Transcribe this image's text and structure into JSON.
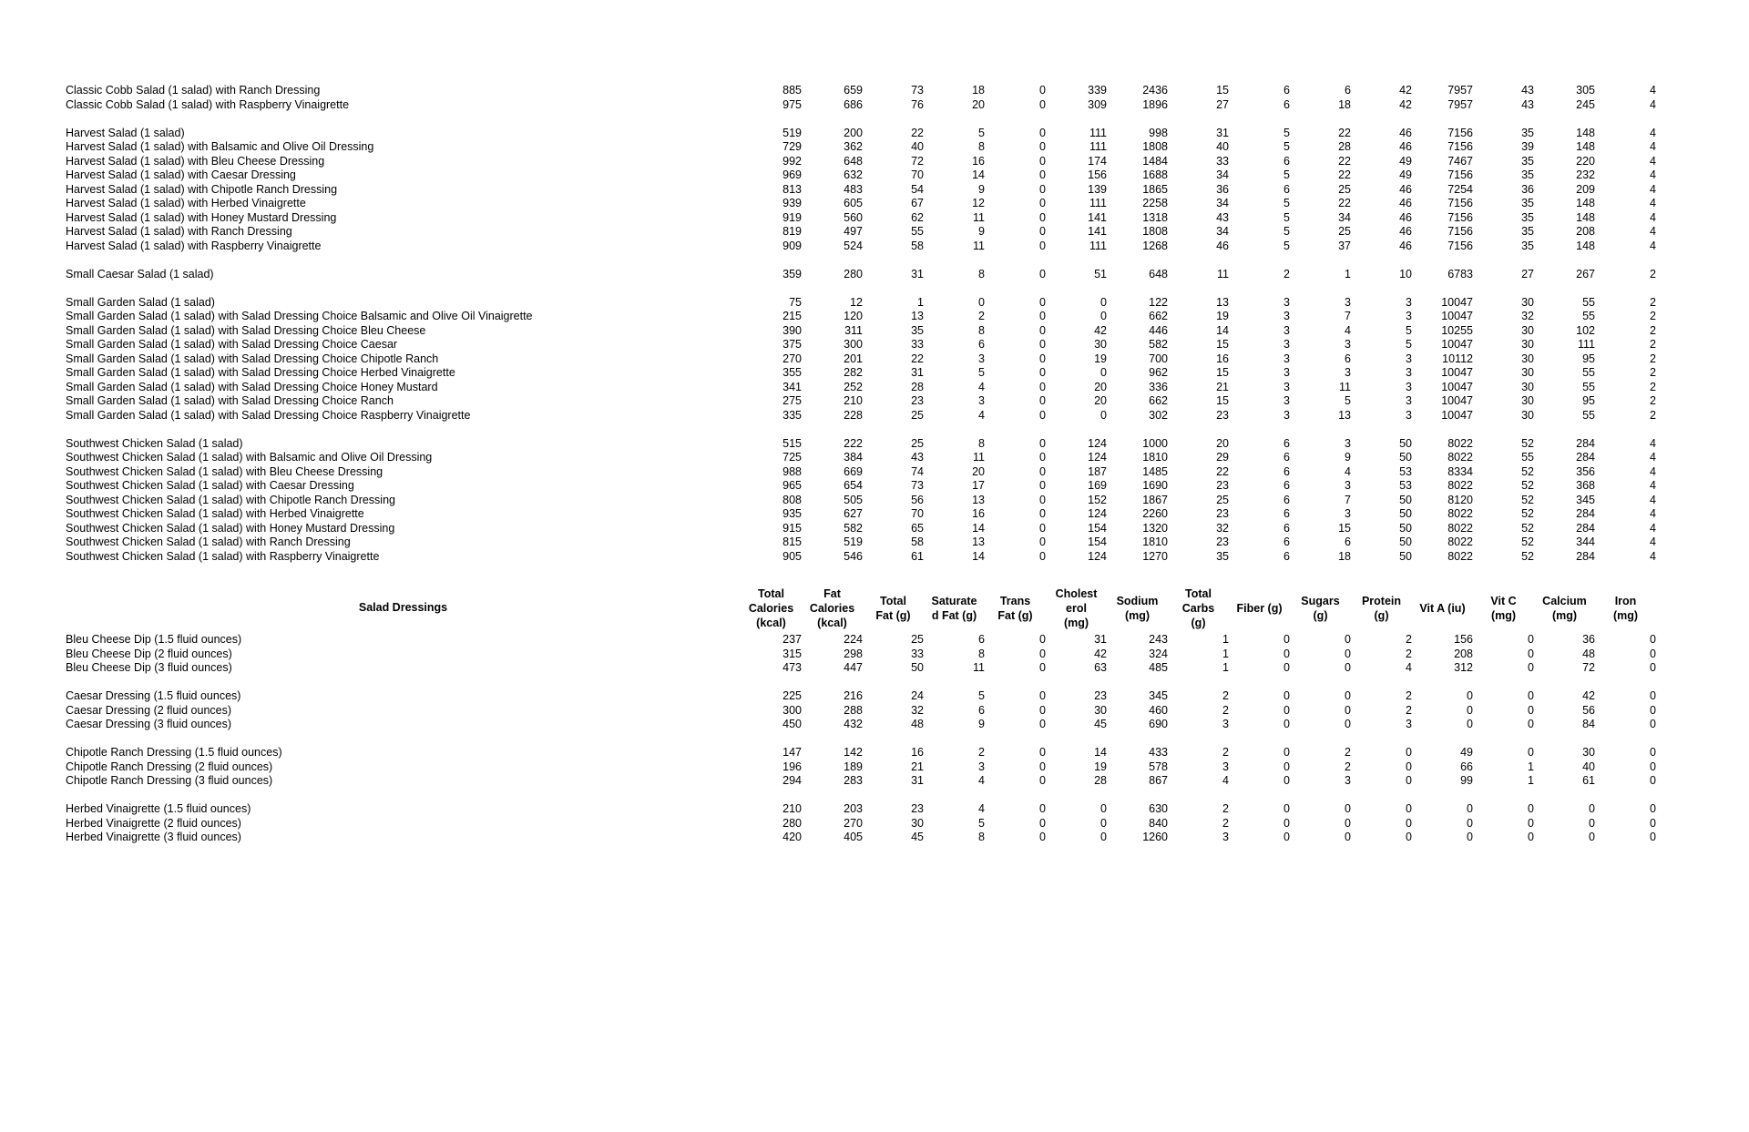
{
  "page": {
    "background_color": "#ffffff",
    "text_color": "#000000"
  },
  "table": {
    "column_keys": [
      "total-calories-kcal",
      "fat-calories-kcal",
      "total-fat-g",
      "saturated-fat-g",
      "trans-fat-g",
      "cholesterol-mg",
      "sodium-mg",
      "total-carbs-g",
      "fiber-g",
      "sugars-g",
      "protein-g",
      "vit-a-iu",
      "vit-c-mg",
      "calcium-mg",
      "iron-mg"
    ],
    "columns": [
      "Total\nCalories\n(kcal)",
      "Fat\nCalories\n(kcal)",
      "Total\nFat (g)",
      "Saturate\nd Fat (g)",
      "Trans\nFat (g)",
      "Cholest\nerol\n(mg)",
      "Sodium\n(mg)",
      "Total\nCarbs\n(g)",
      "Fiber (g)",
      "Sugars\n(g)",
      "Protein\n(g)",
      "Vit A (iu)",
      "Vit C\n(mg)",
      "Calcium\n(mg)",
      "Iron\n(mg)"
    ],
    "dressings_header_label": "Salad Dressings",
    "salad_groups": [
      {
        "rows": [
          {
            "label": "Classic Cobb Salad (1 salad) with Ranch Dressing",
            "values": [
              885,
              659,
              73,
              18,
              0,
              339,
              2436,
              15,
              6,
              6,
              42,
              7957,
              43,
              305,
              4
            ]
          },
          {
            "label": "Classic Cobb Salad (1 salad) with Raspberry Vinaigrette",
            "values": [
              975,
              686,
              76,
              20,
              0,
              309,
              1896,
              27,
              6,
              18,
              42,
              7957,
              43,
              245,
              4
            ]
          }
        ]
      },
      {
        "rows": [
          {
            "label": "Harvest Salad (1 salad)",
            "values": [
              519,
              200,
              22,
              5,
              0,
              111,
              998,
              31,
              5,
              22,
              46,
              7156,
              35,
              148,
              4
            ]
          },
          {
            "label": "Harvest Salad (1 salad) with Balsamic and Olive Oil Dressing",
            "values": [
              729,
              362,
              40,
              8,
              0,
              111,
              1808,
              40,
              5,
              28,
              46,
              7156,
              39,
              148,
              4
            ]
          },
          {
            "label": "Harvest Salad (1 salad) with Bleu Cheese Dressing",
            "values": [
              992,
              648,
              72,
              16,
              0,
              174,
              1484,
              33,
              6,
              22,
              49,
              7467,
              35,
              220,
              4
            ]
          },
          {
            "label": "Harvest Salad (1 salad) with Caesar Dressing",
            "values": [
              969,
              632,
              70,
              14,
              0,
              156,
              1688,
              34,
              5,
              22,
              49,
              7156,
              35,
              232,
              4
            ]
          },
          {
            "label": "Harvest Salad (1 salad) with Chipotle Ranch Dressing",
            "values": [
              813,
              483,
              54,
              9,
              0,
              139,
              1865,
              36,
              6,
              25,
              46,
              7254,
              36,
              209,
              4
            ]
          },
          {
            "label": "Harvest Salad (1 salad) with Herbed Vinaigrette",
            "values": [
              939,
              605,
              67,
              12,
              0,
              111,
              2258,
              34,
              5,
              22,
              46,
              7156,
              35,
              148,
              4
            ]
          },
          {
            "label": "Harvest Salad (1 salad) with Honey Mustard Dressing",
            "values": [
              919,
              560,
              62,
              11,
              0,
              141,
              1318,
              43,
              5,
              34,
              46,
              7156,
              35,
              148,
              4
            ]
          },
          {
            "label": "Harvest Salad (1 salad) with Ranch Dressing",
            "values": [
              819,
              497,
              55,
              9,
              0,
              141,
              1808,
              34,
              5,
              25,
              46,
              7156,
              35,
              208,
              4
            ]
          },
          {
            "label": "Harvest Salad (1 salad) with Raspberry Vinaigrette",
            "values": [
              909,
              524,
              58,
              11,
              0,
              111,
              1268,
              46,
              5,
              37,
              46,
              7156,
              35,
              148,
              4
            ]
          }
        ]
      },
      {
        "rows": [
          {
            "label": "Small Caesar Salad (1 salad)",
            "values": [
              359,
              280,
              31,
              8,
              0,
              51,
              648,
              11,
              2,
              1,
              10,
              6783,
              27,
              267,
              2
            ]
          }
        ]
      },
      {
        "rows": [
          {
            "label": "Small Garden Salad (1 salad)",
            "values": [
              75,
              12,
              1,
              0,
              0,
              0,
              122,
              13,
              3,
              3,
              3,
              10047,
              30,
              55,
              2
            ]
          },
          {
            "label": "Small Garden Salad (1 salad) with Salad Dressing Choice Balsamic and Olive Oil Vinaigrette",
            "values": [
              215,
              120,
              13,
              2,
              0,
              0,
              662,
              19,
              3,
              7,
              3,
              10047,
              32,
              55,
              2
            ]
          },
          {
            "label": "Small Garden Salad (1 salad) with Salad Dressing Choice Bleu Cheese",
            "values": [
              390,
              311,
              35,
              8,
              0,
              42,
              446,
              14,
              3,
              4,
              5,
              10255,
              30,
              102,
              2
            ]
          },
          {
            "label": "Small Garden Salad (1 salad) with Salad Dressing Choice Caesar",
            "values": [
              375,
              300,
              33,
              6,
              0,
              30,
              582,
              15,
              3,
              3,
              5,
              10047,
              30,
              111,
              2
            ]
          },
          {
            "label": "Small Garden Salad (1 salad) with Salad Dressing Choice Chipotle Ranch",
            "values": [
              270,
              201,
              22,
              3,
              0,
              19,
              700,
              16,
              3,
              6,
              3,
              10112,
              30,
              95,
              2
            ]
          },
          {
            "label": "Small Garden Salad (1 salad) with Salad Dressing Choice Herbed Vinaigrette",
            "values": [
              355,
              282,
              31,
              5,
              0,
              0,
              962,
              15,
              3,
              3,
              3,
              10047,
              30,
              55,
              2
            ]
          },
          {
            "label": "Small Garden Salad (1 salad) with Salad Dressing Choice Honey Mustard",
            "values": [
              341,
              252,
              28,
              4,
              0,
              20,
              336,
              21,
              3,
              11,
              3,
              10047,
              30,
              55,
              2
            ]
          },
          {
            "label": "Small Garden Salad (1 salad) with Salad Dressing Choice Ranch",
            "values": [
              275,
              210,
              23,
              3,
              0,
              20,
              662,
              15,
              3,
              5,
              3,
              10047,
              30,
              95,
              2
            ]
          },
          {
            "label": "Small Garden Salad (1 salad) with Salad Dressing Choice Raspberry Vinaigrette",
            "values": [
              335,
              228,
              25,
              4,
              0,
              0,
              302,
              23,
              3,
              13,
              3,
              10047,
              30,
              55,
              2
            ]
          }
        ]
      },
      {
        "rows": [
          {
            "label": "Southwest Chicken Salad (1 salad)",
            "values": [
              515,
              222,
              25,
              8,
              0,
              124,
              1000,
              20,
              6,
              3,
              50,
              8022,
              52,
              284,
              4
            ]
          },
          {
            "label": "Southwest Chicken Salad (1 salad) with Balsamic and Olive Oil Dressing",
            "values": [
              725,
              384,
              43,
              11,
              0,
              124,
              1810,
              29,
              6,
              9,
              50,
              8022,
              55,
              284,
              4
            ]
          },
          {
            "label": "Southwest Chicken Salad (1 salad) with Bleu Cheese Dressing",
            "values": [
              988,
              669,
              74,
              20,
              0,
              187,
              1485,
              22,
              6,
              4,
              53,
              8334,
              52,
              356,
              4
            ]
          },
          {
            "label": "Southwest Chicken Salad (1 salad) with Caesar Dressing",
            "values": [
              965,
              654,
              73,
              17,
              0,
              169,
              1690,
              23,
              6,
              3,
              53,
              8022,
              52,
              368,
              4
            ]
          },
          {
            "label": "Southwest Chicken Salad (1 salad) with Chipotle Ranch Dressing",
            "values": [
              808,
              505,
              56,
              13,
              0,
              152,
              1867,
              25,
              6,
              7,
              50,
              8120,
              52,
              345,
              4
            ]
          },
          {
            "label": "Southwest Chicken Salad (1 salad) with Herbed Vinaigrette",
            "values": [
              935,
              627,
              70,
              16,
              0,
              124,
              2260,
              23,
              6,
              3,
              50,
              8022,
              52,
              284,
              4
            ]
          },
          {
            "label": "Southwest Chicken Salad (1 salad) with Honey Mustard Dressing",
            "values": [
              915,
              582,
              65,
              14,
              0,
              154,
              1320,
              32,
              6,
              15,
              50,
              8022,
              52,
              284,
              4
            ]
          },
          {
            "label": "Southwest Chicken Salad (1 salad) with Ranch Dressing",
            "values": [
              815,
              519,
              58,
              13,
              0,
              154,
              1810,
              23,
              6,
              6,
              50,
              8022,
              52,
              344,
              4
            ]
          },
          {
            "label": "Southwest Chicken Salad (1 salad) with Raspberry Vinaigrette",
            "values": [
              905,
              546,
              61,
              14,
              0,
              124,
              1270,
              35,
              6,
              18,
              50,
              8022,
              52,
              284,
              4
            ]
          }
        ]
      }
    ],
    "dressing_groups": [
      {
        "rows": [
          {
            "label": "Bleu Cheese Dip (1.5 fluid ounces)",
            "values": [
              237,
              224,
              25,
              6,
              0,
              31,
              243,
              1,
              0,
              0,
              2,
              156,
              0,
              36,
              0
            ]
          },
          {
            "label": "Bleu Cheese Dip (2 fluid ounces)",
            "values": [
              315,
              298,
              33,
              8,
              0,
              42,
              324,
              1,
              0,
              0,
              2,
              208,
              0,
              48,
              0
            ]
          },
          {
            "label": "Bleu Cheese Dip (3 fluid ounces)",
            "values": [
              473,
              447,
              50,
              11,
              0,
              63,
              485,
              1,
              0,
              0,
              4,
              312,
              0,
              72,
              0
            ]
          }
        ]
      },
      {
        "rows": [
          {
            "label": "Caesar Dressing (1.5 fluid ounces)",
            "values": [
              225,
              216,
              24,
              5,
              0,
              23,
              345,
              2,
              0,
              0,
              2,
              0,
              0,
              42,
              0
            ]
          },
          {
            "label": "Caesar Dressing (2 fluid ounces)",
            "values": [
              300,
              288,
              32,
              6,
              0,
              30,
              460,
              2,
              0,
              0,
              2,
              0,
              0,
              56,
              0
            ]
          },
          {
            "label": "Caesar Dressing (3 fluid ounces)",
            "values": [
              450,
              432,
              48,
              9,
              0,
              45,
              690,
              3,
              0,
              0,
              3,
              0,
              0,
              84,
              0
            ]
          }
        ]
      },
      {
        "rows": [
          {
            "label": "Chipotle Ranch Dressing (1.5 fluid ounces)",
            "values": [
              147,
              142,
              16,
              2,
              0,
              14,
              433,
              2,
              0,
              2,
              0,
              49,
              0,
              30,
              0
            ]
          },
          {
            "label": "Chipotle Ranch Dressing (2 fluid ounces)",
            "values": [
              196,
              189,
              21,
              3,
              0,
              19,
              578,
              3,
              0,
              2,
              0,
              66,
              1,
              40,
              0
            ]
          },
          {
            "label": "Chipotle Ranch Dressing (3 fluid ounces)",
            "values": [
              294,
              283,
              31,
              4,
              0,
              28,
              867,
              4,
              0,
              3,
              0,
              99,
              1,
              61,
              0
            ]
          }
        ]
      },
      {
        "rows": [
          {
            "label": "Herbed Vinaigrette (1.5 fluid ounces)",
            "values": [
              210,
              203,
              23,
              4,
              0,
              0,
              630,
              2,
              0,
              0,
              0,
              0,
              0,
              0,
              0
            ]
          },
          {
            "label": "Herbed Vinaigrette (2 fluid ounces)",
            "values": [
              280,
              270,
              30,
              5,
              0,
              0,
              840,
              2,
              0,
              0,
              0,
              0,
              0,
              0,
              0
            ]
          },
          {
            "label": "Herbed Vinaigrette (3 fluid ounces)",
            "values": [
              420,
              405,
              45,
              8,
              0,
              0,
              1260,
              3,
              0,
              0,
              0,
              0,
              0,
              0,
              0
            ]
          }
        ]
      }
    ]
  }
}
